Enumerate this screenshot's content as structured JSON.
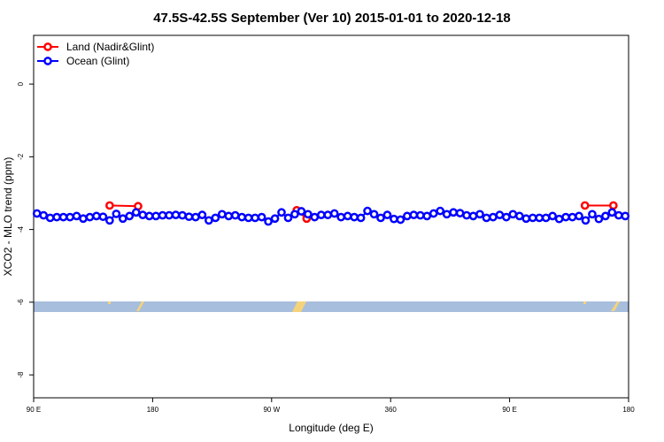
{
  "chart_data": {
    "type": "line",
    "title": "47.5S-42.5S September (Ver 10)   2015-01-01 to 2020-12-18",
    "x_label": "Longitude (deg E)",
    "y_label": "XCO2 - MLO trend (ppm)",
    "xlim": [
      90,
      540
    ],
    "ylim": [
      -8.63,
      1.34
    ],
    "xticks": [
      {
        "value": 90,
        "label": "90 E"
      },
      180,
      {
        "value": 270,
        "label": "90 W"
      },
      360,
      {
        "value": 450,
        "label": "90 E"
      },
      {
        "value": 540,
        "label": "180"
      }
    ],
    "yticks": [
      0,
      -2,
      -4,
      -6,
      -8
    ],
    "legend": "top-left",
    "series": [
      {
        "name": "Land (Nadir&Glint)",
        "color": "#ff0000",
        "x": [
          147.5,
          169,
          230,
          289,
          296.5,
          400,
          507,
          528.5
        ],
        "values": [
          -3.34,
          -3.36,
          null,
          -3.47,
          -3.7,
          null,
          -3.34,
          -3.34
        ]
      },
      {
        "name": "Ocean (Glint)",
        "color": "#0000ff",
        "x": [
          92.5,
          97.5,
          102.5,
          107.5,
          112.5,
          117.5,
          122.5,
          127.5,
          132.5,
          137.5,
          142.5,
          147.5,
          152.5,
          157.5,
          162.5,
          167.5,
          172.5,
          177.5,
          182.5,
          187.5,
          192.5,
          197.5,
          202.5,
          207.5,
          212.5,
          217.5,
          222.5,
          227.5,
          232.5,
          237.5,
          242.5,
          247.5,
          252.5,
          257.5,
          262.5,
          267.5,
          272.5,
          277.5,
          282.5,
          287.5,
          292.5,
          297.5,
          302.5,
          307.5,
          312.5,
          317.5,
          322.5,
          327.5,
          332.5,
          337.5,
          342.5,
          347.5,
          352.5,
          357.5,
          362.5,
          367.5,
          372.5,
          377.5,
          382.5,
          387.5,
          392.5,
          397.5,
          402.5,
          407.5,
          412.5,
          417.5,
          422.5,
          427.5,
          432.5,
          437.5,
          442.5,
          447.5,
          452.5,
          457.5,
          462.5,
          467.5,
          472.5,
          477.5,
          482.5,
          487.5,
          492.5,
          497.5,
          502.5,
          507.5,
          512.5,
          517.5,
          522.5,
          527.5,
          532.5,
          537.5
        ],
        "values": [
          -3.56,
          -3.61,
          -3.68,
          -3.66,
          -3.66,
          -3.66,
          -3.63,
          -3.7,
          -3.66,
          -3.63,
          -3.65,
          -3.75,
          -3.57,
          -3.7,
          -3.63,
          -3.53,
          -3.6,
          -3.63,
          -3.63,
          -3.61,
          -3.61,
          -3.6,
          -3.61,
          -3.65,
          -3.66,
          -3.6,
          -3.75,
          -3.68,
          -3.58,
          -3.63,
          -3.61,
          -3.66,
          -3.68,
          -3.68,
          -3.66,
          -3.78,
          -3.7,
          -3.53,
          -3.68,
          -3.58,
          -3.5,
          -3.58,
          -3.66,
          -3.6,
          -3.6,
          -3.56,
          -3.66,
          -3.63,
          -3.66,
          -3.68,
          -3.49,
          -3.58,
          -3.68,
          -3.6,
          -3.71,
          -3.73,
          -3.63,
          -3.6,
          -3.61,
          -3.63,
          -3.56,
          -3.49,
          -3.58,
          -3.53,
          -3.55,
          -3.61,
          -3.63,
          -3.58,
          -3.68,
          -3.66,
          -3.6,
          -3.66,
          -3.58,
          -3.63,
          -3.7,
          -3.68,
          -3.68,
          -3.68,
          -3.63,
          -3.71,
          -3.66,
          -3.66,
          -3.63,
          -3.75,
          -3.58,
          -3.71,
          -3.63,
          -3.53,
          -3.61,
          -3.63
        ]
      }
    ]
  }
}
